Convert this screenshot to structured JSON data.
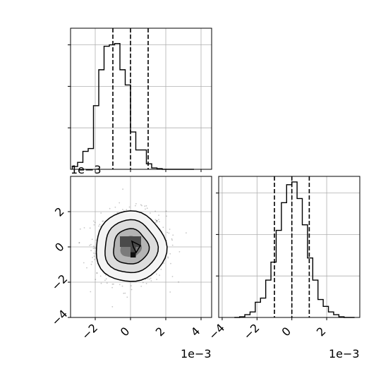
{
  "chart_data": [
    {
      "type": "histogram",
      "panel": "top-left marginal",
      "bin_edges": [
        -0.0033,
        -0.003,
        -0.0027,
        -0.0024,
        -0.0021,
        -0.0018,
        -0.0015,
        -0.0012,
        -0.0009,
        -0.0006,
        -0.0003,
        0.0,
        0.0003,
        0.0006,
        0.0009,
        0.0012,
        0.0015,
        0.0018,
        0.0021,
        0.0024,
        0.0027,
        0.003,
        0.0033,
        0.0036
      ],
      "counts": [
        0.02,
        0.05,
        0.13,
        0.15,
        0.46,
        0.72,
        0.89,
        0.9,
        0.91,
        0.72,
        0.61,
        0.27,
        0.14,
        0.14,
        0.04,
        0.01,
        0.005,
        0.0,
        0.0,
        0.0,
        0.0,
        0.0,
        0.0
      ],
      "quantiles": [
        -0.001,
        0.0,
        0.001
      ],
      "xlim": [
        -0.0034,
        0.0046
      ],
      "grid": true
    },
    {
      "type": "histogram2d",
      "panel": "bottom-left joint",
      "xlim": [
        -0.0034,
        0.0046
      ],
      "ylim": [
        -0.004,
        0.004
      ],
      "x_ticks": [
        "−2",
        "0",
        "2",
        "4"
      ],
      "y_ticks": [
        "−4",
        "−2",
        "0",
        "2"
      ],
      "x_tick_values": [
        -0.002,
        0.0,
        0.002,
        0.004
      ],
      "y_tick_values": [
        -0.004,
        -0.002,
        0.0,
        0.002
      ],
      "x_offset_label": "1e−3",
      "y_offset_label": "1e−3",
      "contours": "density levels around (0, 0)",
      "grid": true
    },
    {
      "type": "histogram",
      "panel": "bottom-right marginal",
      "bin_edges": [
        -0.0033,
        -0.003,
        -0.0027,
        -0.0024,
        -0.0021,
        -0.0018,
        -0.0015,
        -0.0012,
        -0.0009,
        -0.0006,
        -0.0003,
        0.0,
        0.0003,
        0.0006,
        0.0009,
        0.0012,
        0.0015,
        0.0018,
        0.0021,
        0.0024,
        0.0027,
        0.003,
        0.0033,
        0.0036
      ],
      "counts": [
        0.0,
        0.005,
        0.02,
        0.04,
        0.11,
        0.14,
        0.27,
        0.4,
        0.63,
        0.83,
        0.96,
        0.98,
        0.86,
        0.67,
        0.43,
        0.27,
        0.13,
        0.08,
        0.04,
        0.02,
        0.005,
        0.0,
        0.0
      ],
      "quantiles": [
        -0.001,
        0.0,
        0.001
      ],
      "xlim": [
        -0.0042,
        0.0039
      ],
      "x_ticks": [
        "−4",
        "−2",
        "0",
        "2"
      ],
      "x_tick_values": [
        -0.004,
        -0.002,
        0.0,
        0.002
      ],
      "x_offset_label": "1e−3",
      "grid": true
    }
  ]
}
